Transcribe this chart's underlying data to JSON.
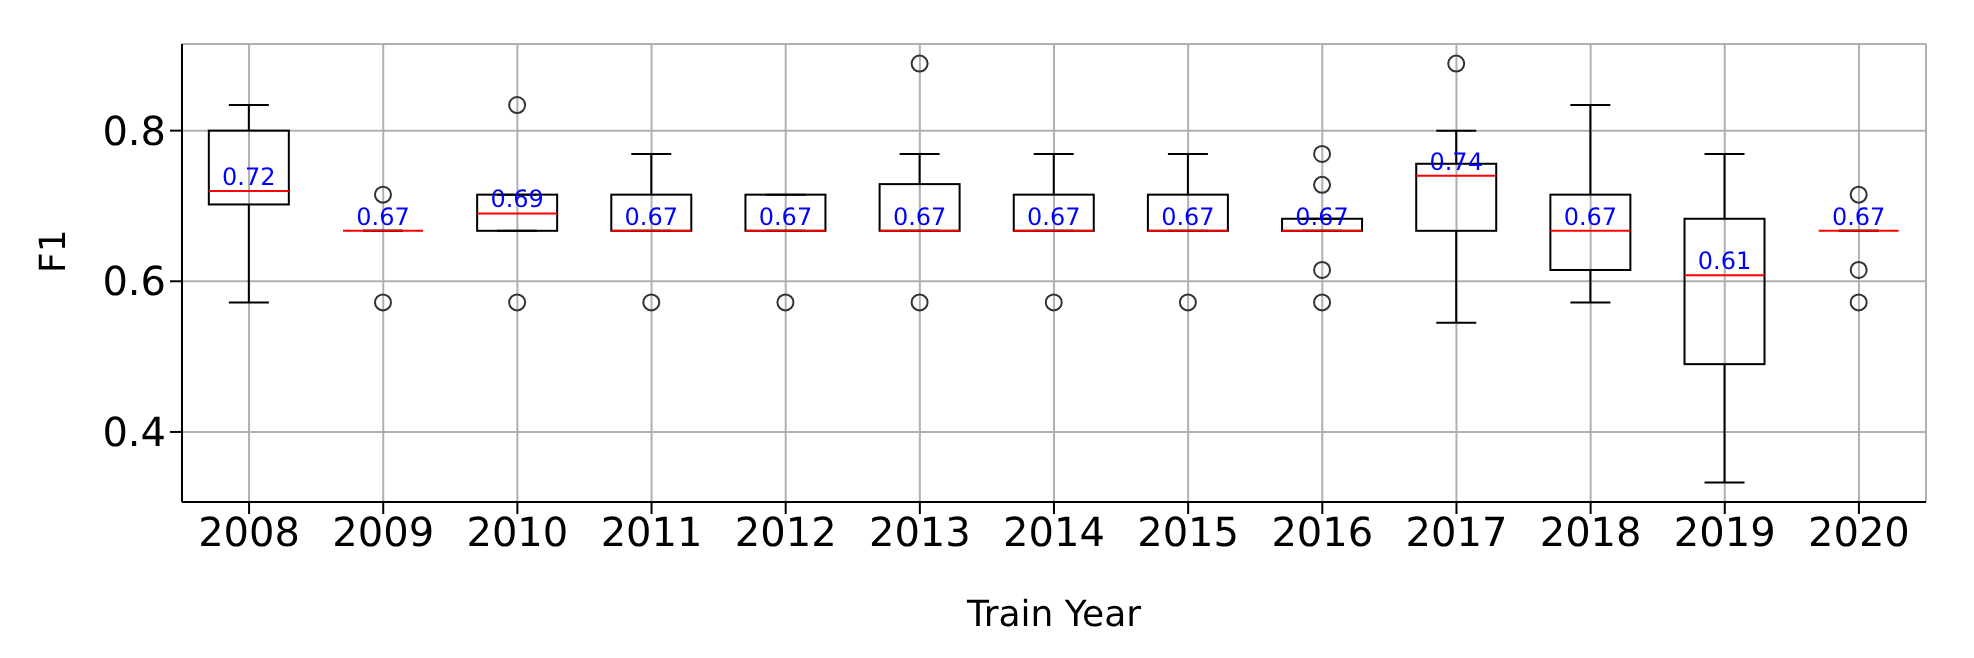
{
  "chart_data": {
    "type": "box",
    "xlabel": "Train Year",
    "ylabel": "F1",
    "categories": [
      "2008",
      "2009",
      "2010",
      "2011",
      "2012",
      "2013",
      "2014",
      "2015",
      "2016",
      "2017",
      "2018",
      "2019",
      "2020"
    ],
    "boxes": [
      {
        "low": 0.572,
        "q1": 0.702,
        "median": 0.72,
        "q3": 0.8,
        "high": 0.834
      },
      {
        "low": 0.667,
        "q1": 0.667,
        "median": 0.667,
        "q3": 0.667,
        "high": 0.667,
        "outliers": [
          0.715,
          0.572
        ]
      },
      {
        "low": 0.667,
        "q1": 0.667,
        "median": 0.69,
        "q3": 0.715,
        "high": 0.715,
        "outliers": [
          0.834,
          0.572
        ]
      },
      {
        "low": 0.667,
        "q1": 0.667,
        "median": 0.667,
        "q3": 0.715,
        "high": 0.769,
        "outliers": [
          0.572
        ]
      },
      {
        "low": 0.667,
        "q1": 0.667,
        "median": 0.667,
        "q3": 0.715,
        "high": 0.715,
        "outliers": [
          0.572
        ]
      },
      {
        "low": 0.667,
        "q1": 0.667,
        "median": 0.667,
        "q3": 0.729,
        "high": 0.769,
        "outliers": [
          0.889,
          0.572
        ]
      },
      {
        "low": 0.667,
        "q1": 0.667,
        "median": 0.667,
        "q3": 0.715,
        "high": 0.769,
        "outliers": [
          0.572
        ]
      },
      {
        "low": 0.667,
        "q1": 0.667,
        "median": 0.667,
        "q3": 0.715,
        "high": 0.769,
        "outliers": [
          0.572
        ]
      },
      {
        "low": 0.667,
        "q1": 0.667,
        "median": 0.667,
        "q3": 0.683,
        "high": 0.683,
        "outliers": [
          0.769,
          0.728,
          0.615,
          0.572
        ]
      },
      {
        "low": 0.545,
        "q1": 0.667,
        "median": 0.74,
        "q3": 0.756,
        "high": 0.8,
        "outliers": [
          0.889
        ]
      },
      {
        "low": 0.572,
        "q1": 0.615,
        "median": 0.667,
        "q3": 0.715,
        "high": 0.834
      },
      {
        "low": 0.333,
        "q1": 0.49,
        "median": 0.608,
        "q3": 0.683,
        "high": 0.769
      },
      {
        "low": 0.667,
        "q1": 0.667,
        "median": 0.667,
        "q3": 0.667,
        "high": 0.667,
        "outliers": [
          0.715,
          0.615,
          0.572
        ]
      }
    ],
    "value_labels": [
      "0.72",
      "0.67",
      "0.69",
      "0.67",
      "0.67",
      "0.67",
      "0.67",
      "0.67",
      "0.67",
      "0.74",
      "0.67",
      "0.61",
      "0.67"
    ],
    "ylim": [
      0.307,
      0.915
    ],
    "yticks": [
      0.4,
      0.6,
      0.8
    ],
    "grid": true
  }
}
